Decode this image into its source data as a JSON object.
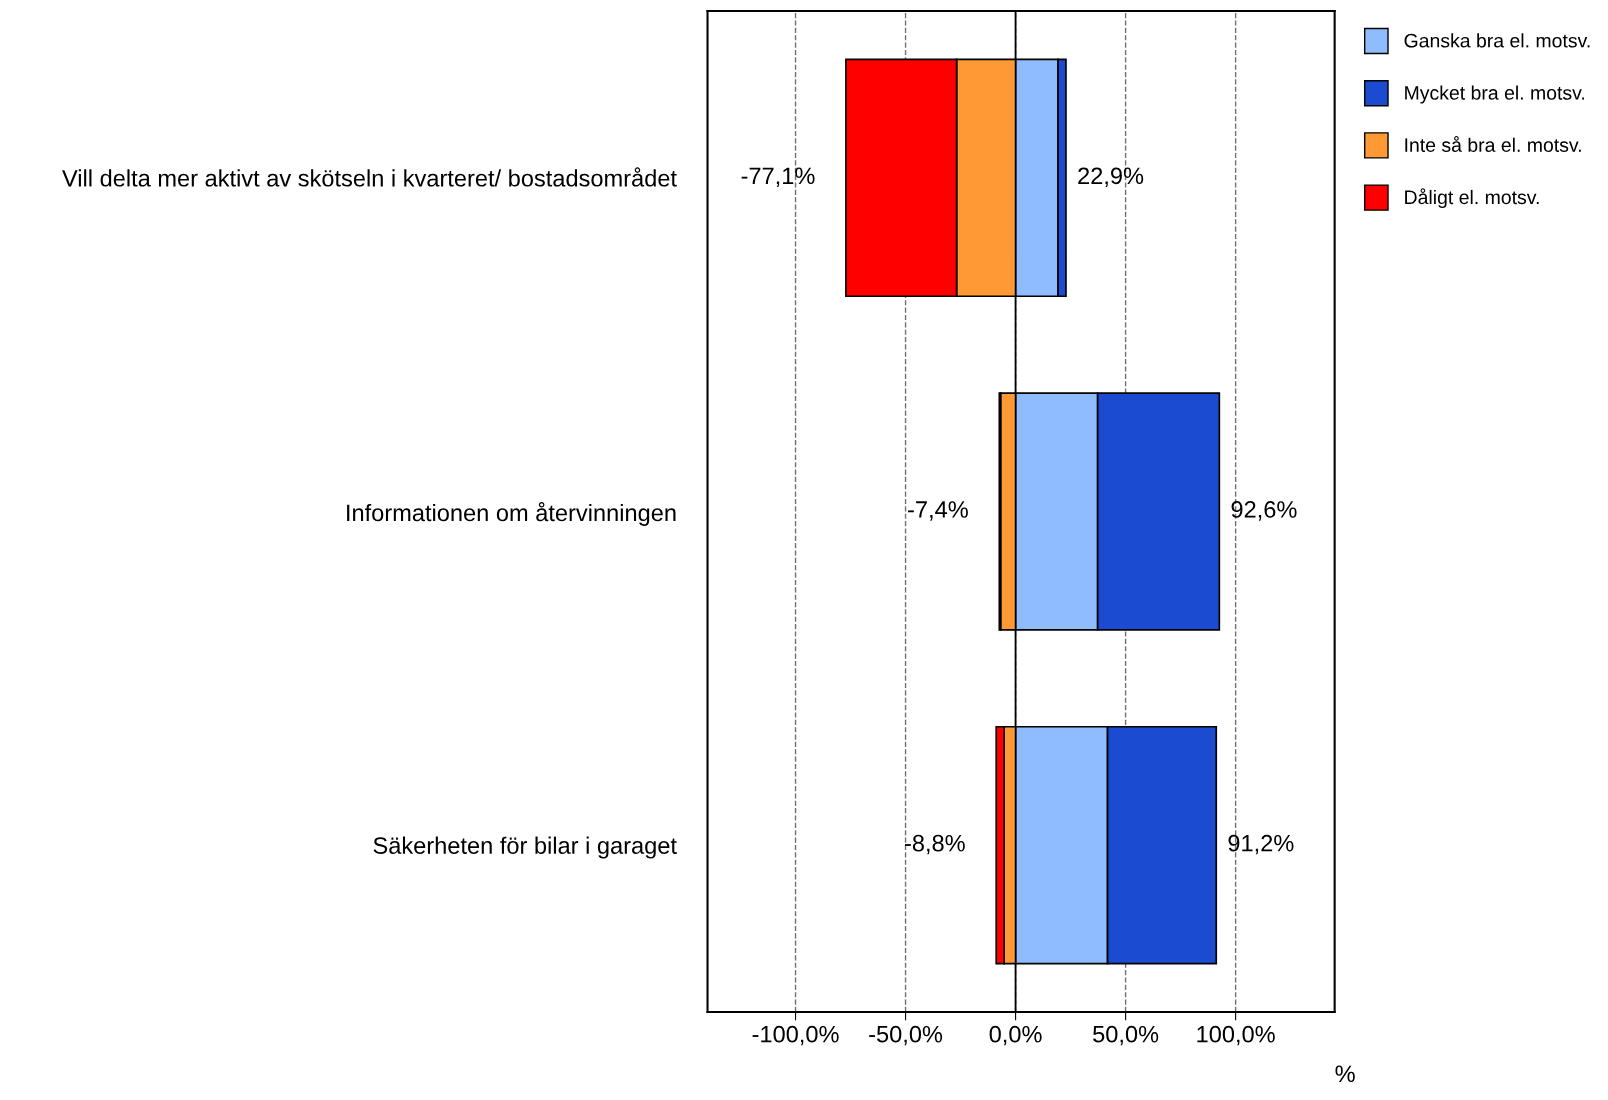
{
  "chart_data": {
    "type": "bar",
    "orientation": "horizontal",
    "stacked": true,
    "xlabel": "%",
    "categories": [
      "Vill delta mer aktivt av skötseln i kvarteret/ bostadsområdet",
      "Informationen om återvinningen",
      "Säkerheten för bilar i garaget"
    ],
    "series": [
      {
        "name": "Ganska bra el. motsv.",
        "color": "#8fbcff",
        "values": [
          19.3,
          37.3,
          41.8
        ]
      },
      {
        "name": "Mycket bra el. motsv.",
        "color": "#1a4bd1",
        "values": [
          3.6,
          55.3,
          49.4
        ]
      },
      {
        "name": "Inte så bra el. motsv.",
        "color": "#ff9933",
        "values": [
          -26.8,
          -6.8,
          -5.2
        ]
      },
      {
        "name": "Dåligt el. motsv.",
        "color": "#ff0000",
        "values": [
          -50.3,
          -0.6,
          -3.6
        ]
      }
    ],
    "xlim": [
      -140,
      145
    ],
    "xticks": [
      {
        "value": -100,
        "label": "-100,0%"
      },
      {
        "value": -50,
        "label": "-50,0%"
      },
      {
        "value": 0,
        "label": "0,0%"
      },
      {
        "value": 50,
        "label": "50,0%"
      },
      {
        "value": 100,
        "label": "100,0%"
      }
    ],
    "grid": "x",
    "legend": "top right",
    "ref_lines": [
      {
        "axis": "x",
        "value": 0,
        "color": "#000000",
        "line_style": "solid"
      }
    ],
    "annotations": [
      {
        "text": "-77,1%",
        "x": -77.1,
        "y": "Vill delta mer aktivt av skötseln i kvarteret/ bostadsområdet"
      },
      {
        "text": "22,9%",
        "x": 22.9,
        "y": "Vill delta mer aktivt av skötseln i kvarteret/ bostadsområdet"
      },
      {
        "text": "-7,4%",
        "x": -7.4,
        "y": "Informationen om återvinningen"
      },
      {
        "text": "92,6%",
        "x": 92.6,
        "y": "Informationen om återvinningen"
      },
      {
        "text": "-8,8%",
        "x": -8.8,
        "y": "Säkerheten för bilar i garaget"
      },
      {
        "text": "91,2%",
        "x": 91.2,
        "y": "Säkerheten för bilar i garaget"
      }
    ]
  }
}
